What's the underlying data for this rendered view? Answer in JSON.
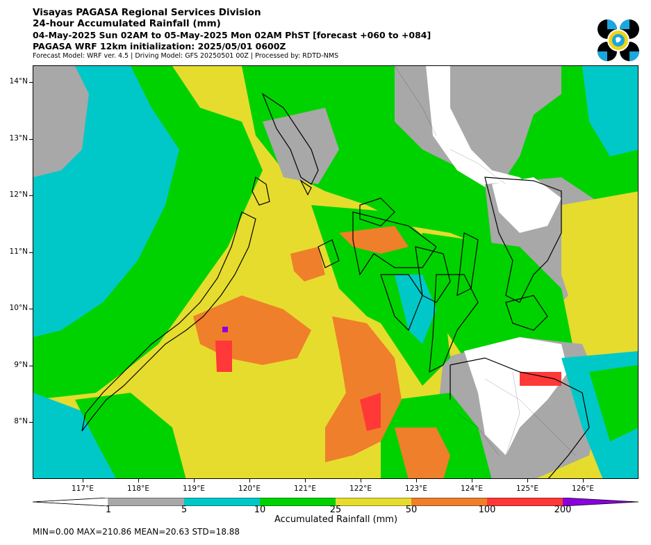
{
  "header": {
    "title": "Visayas PAGASA Regional Services Division",
    "subtitle": "24-hour Accumulated Rainfall (mm)",
    "period": "04-May-2025 Sun 02AM to 05-May-2025 Mon 02AM PhST [forecast +060 to +084]",
    "init": "PAGASA WRF 12km initialization: 2025/05/01 0600Z",
    "model": "Forecast Model: WRF ver. 4.5 | Driving Model: GFS 20250501 00Z | Processed by: RDTD-NMS"
  },
  "logo": {
    "name": "PAGASA logo"
  },
  "map": {
    "lat_ticks": [
      "14°N",
      "13°N",
      "12°N",
      "11°N",
      "10°N",
      "9°N",
      "8°N"
    ],
    "lon_ticks": [
      "117°E",
      "118°E",
      "119°E",
      "120°E",
      "121°E",
      "122°E",
      "123°E",
      "124°E",
      "125°E",
      "126°E"
    ],
    "lat_range": [
      7.0,
      14.3
    ],
    "lon_range": [
      116.1,
      127.0
    ]
  },
  "colorbar": {
    "levels": [
      "1",
      "5",
      "10",
      "25",
      "50",
      "100",
      "200"
    ],
    "colors": [
      "#ffffff",
      "#a8a8a8",
      "#00c8c8",
      "#00d200",
      "#e6dc2e",
      "#ef7f2a",
      "#ff3838",
      "#8a00e0"
    ],
    "label": "Accumulated Rainfall (mm)"
  },
  "stats": {
    "text": "MIN=0.00   MAX=210.86   MEAN=20.63   STD=18.88"
  }
}
